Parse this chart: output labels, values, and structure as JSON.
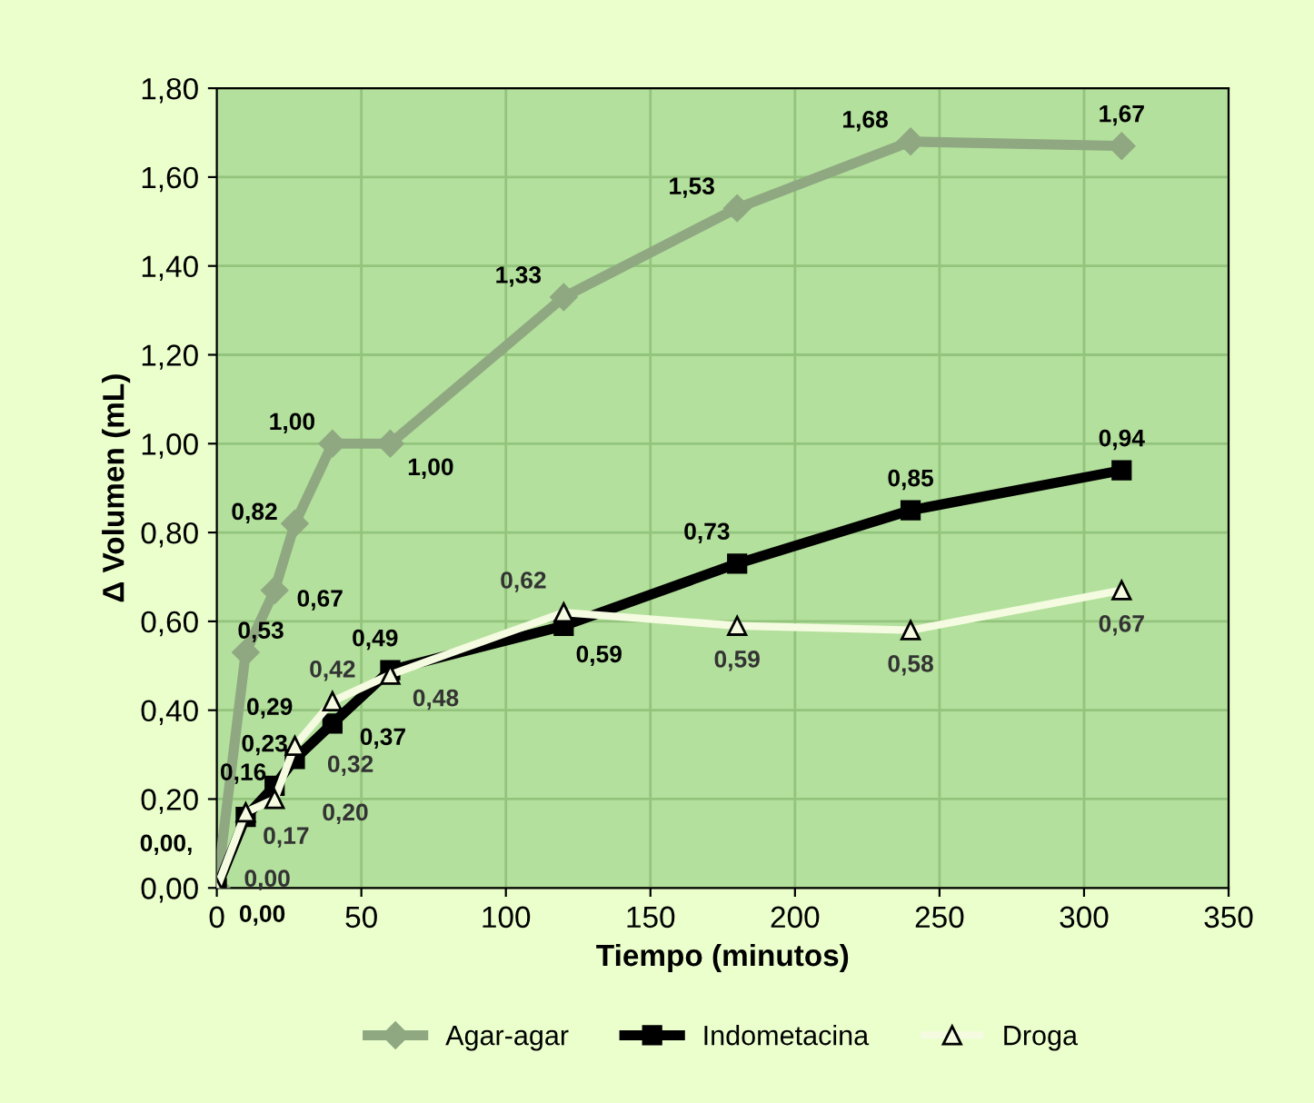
{
  "chart_data": {
    "type": "line",
    "xlabel": "Tiempo (minutos)",
    "ylabel": "Δ Volumen (mL)",
    "x": [
      0,
      10,
      20,
      27,
      40,
      60,
      120,
      180,
      240,
      313
    ],
    "series": [
      {
        "name": "Agar-agar",
        "color": "#8fa882",
        "marker": "diamond",
        "values": [
          0.0,
          0.53,
          0.67,
          0.82,
          1.0,
          1.0,
          1.33,
          1.53,
          1.68,
          1.67
        ],
        "value_labels": [
          "0,00",
          "0,53",
          "0,67",
          "0,82",
          "1,00",
          "1,00",
          "1,33",
          "1,53",
          "1,68",
          "1,67"
        ]
      },
      {
        "name": "Indometacina",
        "color": "#000000",
        "marker": "square",
        "values": [
          0.0,
          0.16,
          0.23,
          0.29,
          0.37,
          0.49,
          0.59,
          0.73,
          0.85,
          0.94
        ],
        "value_labels": [
          "0,00,",
          "0,16",
          "0,23",
          "0,29",
          "0,37",
          "0,49",
          "0,59",
          "0,73",
          "0,85",
          "0,94"
        ]
      },
      {
        "name": "Droga",
        "color": "#f4fbe0",
        "marker": "triangle",
        "values": [
          0.0,
          0.17,
          0.2,
          0.32,
          0.42,
          0.48,
          0.62,
          0.59,
          0.58,
          0.67
        ],
        "value_labels": [
          "0,00",
          "0,17",
          "0,20",
          "0,32",
          "0,42",
          "0,48",
          "0,62",
          "0,59",
          "0,58",
          "0,67"
        ]
      }
    ],
    "xlim": [
      0,
      350
    ],
    "xticks": [
      0,
      50,
      100,
      150,
      200,
      250,
      300,
      350
    ],
    "ylim": [
      0,
      1.8
    ],
    "yticks": [
      {
        "value": 0,
        "label": "0,00"
      },
      {
        "value": 0.2,
        "label": "0,20"
      },
      {
        "value": 0.4,
        "label": "0,40"
      },
      {
        "value": 0.6,
        "label": "0,60"
      },
      {
        "value": 0.8,
        "label": "0,80"
      },
      {
        "value": 1.0,
        "label": "1,00"
      },
      {
        "value": 1.2,
        "label": "1,20"
      },
      {
        "value": 1.4,
        "label": "1,40"
      },
      {
        "value": 1.6,
        "label": "1,60"
      },
      {
        "value": 1.8,
        "label": "1,80"
      }
    ],
    "grid": true,
    "legend": "bottom"
  }
}
